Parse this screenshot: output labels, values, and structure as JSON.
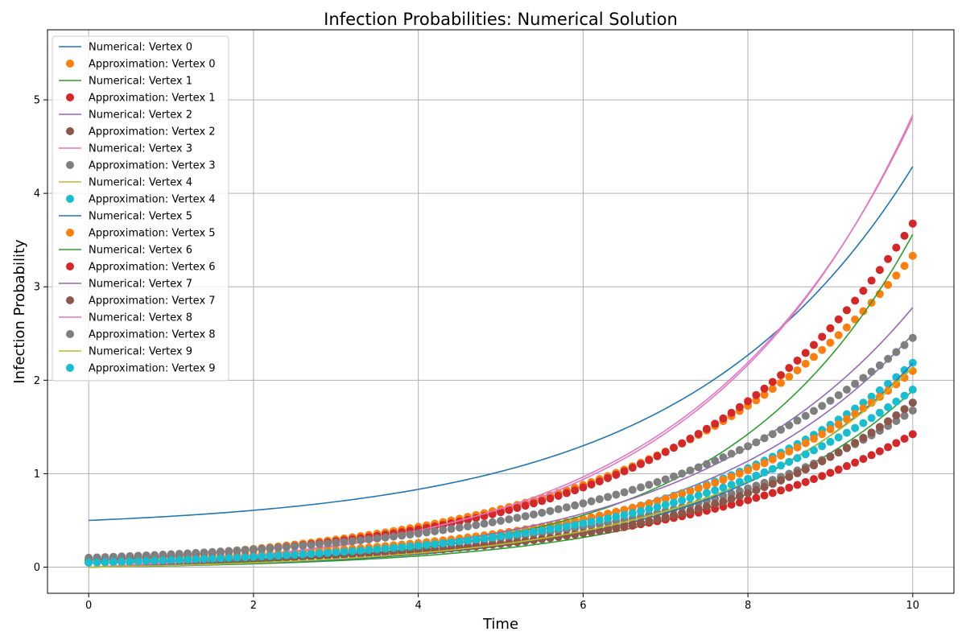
{
  "chart_data": {
    "type": "line",
    "title": "Infection Probabilities: Numerical Solution",
    "xlabel": "Time",
    "ylabel": "Infection Probability",
    "xlim": [
      -0.5,
      10.5
    ],
    "ylim": [
      -0.28,
      5.75
    ],
    "xticks": [
      0,
      2,
      4,
      6,
      8,
      10
    ],
    "yticks": [
      0,
      1,
      2,
      3,
      4,
      5
    ],
    "grid": true,
    "legend_position": "top-left",
    "colors": {
      "blue": "#1f77b4",
      "orange": "#ff7f0e",
      "green": "#2ca02c",
      "red": "#d62728",
      "purple": "#9467bd",
      "brown": "#8c564b",
      "pink": "#e377c2",
      "gray": "#7f7f7f",
      "olive": "#bcbd22",
      "cyan": "#17becf"
    },
    "approximation_t": [
      0.0,
      0.1,
      0.2,
      0.3,
      0.4,
      0.5,
      0.6,
      0.7,
      0.8,
      0.9,
      1.0,
      1.1,
      1.2,
      1.3,
      1.4,
      1.5,
      1.6,
      1.7,
      1.8,
      1.9,
      2.0,
      2.1,
      2.2,
      2.3,
      2.4,
      2.5,
      2.6,
      2.7,
      2.8,
      2.9,
      3.0,
      3.1,
      3.2,
      3.3,
      3.4,
      3.5,
      3.6,
      3.7,
      3.8,
      3.9,
      4.0,
      4.1,
      4.2,
      4.3,
      4.4,
      4.5,
      4.6,
      4.7,
      4.8,
      4.9,
      5.0,
      5.1,
      5.2,
      5.3,
      5.4,
      5.5,
      5.6,
      5.7,
      5.8,
      5.9,
      6.0,
      6.1,
      6.2,
      6.3,
      6.4,
      6.5,
      6.6,
      6.7,
      6.8,
      6.9,
      7.0,
      7.1,
      7.2,
      7.3,
      7.4,
      7.5,
      7.6,
      7.7,
      7.8,
      7.9,
      8.0,
      8.1,
      8.2,
      8.3,
      8.4,
      8.5,
      8.6,
      8.7,
      8.8,
      8.9,
      9.0,
      9.1,
      9.2,
      9.3,
      9.4,
      9.5,
      9.6,
      9.7,
      9.8,
      9.9,
      10.0
    ],
    "series": [
      {
        "name": "Numerical: Vertex 0",
        "kind": "line",
        "color": "#1f77b4",
        "base": 0.5,
        "amp": 0.1,
        "rate": 0.366
      },
      {
        "name": "Approximation: Vertex 0",
        "kind": "points",
        "color": "#ff7f0e",
        "base": 0.07,
        "amp": 0.14,
        "rate": 0.319
      },
      {
        "name": "Numerical: Vertex 1",
        "kind": "line",
        "color": "#2ca02c",
        "base": 0.0,
        "amp": 0.026,
        "rate": 0.43
      },
      {
        "name": "Approximation: Vertex 1",
        "kind": "points",
        "color": "#d62728",
        "base": 0.05,
        "amp": 0.045,
        "rate": 0.345
      },
      {
        "name": "Numerical: Vertex 2",
        "kind": "line",
        "color": "#9467bd",
        "base": 0.0,
        "amp": 0.057,
        "rate": 0.38
      },
      {
        "name": "Approximation: Vertex 2",
        "kind": "points",
        "color": "#8c564b",
        "base": 0.05,
        "amp": 0.03,
        "rate": 0.406
      },
      {
        "name": "Numerical: Vertex 3",
        "kind": "line",
        "color": "#e377c2",
        "base": 0.0,
        "amp": 0.1,
        "rate": 0.39
      },
      {
        "name": "Approximation: Vertex 3",
        "kind": "points",
        "color": "#7f7f7f",
        "base": 0.07,
        "amp": 0.05,
        "rate": 0.35
      },
      {
        "name": "Numerical: Vertex 4",
        "kind": "line",
        "color": "#bcbd22",
        "base": 0.0,
        "amp": 0.036,
        "rate": 0.41
      },
      {
        "name": "Approximation: Vertex 4",
        "kind": "points",
        "color": "#17becf",
        "base": 0.05,
        "amp": 0.06,
        "rate": 0.36
      },
      {
        "name": "Numerical: Vertex 5",
        "kind": "line",
        "color": "#1f77b4",
        "base": 0.0,
        "amp": 0.03,
        "rate": 0.43
      },
      {
        "name": "Approximation: Vertex 5",
        "kind": "points",
        "color": "#ff7f0e",
        "base": 0.07,
        "amp": 0.06,
        "rate": 0.355
      },
      {
        "name": "Numerical: Vertex 6",
        "kind": "line",
        "color": "#2ca02c",
        "base": 0.0,
        "amp": 0.04,
        "rate": 0.45
      },
      {
        "name": "Approximation: Vertex 6",
        "kind": "points",
        "color": "#d62728",
        "base": 0.08,
        "amp": 0.1,
        "rate": 0.361
      },
      {
        "name": "Numerical: Vertex 7",
        "kind": "line",
        "color": "#9467bd",
        "base": 0.0,
        "amp": 0.069,
        "rate": 0.372
      },
      {
        "name": "Approximation: Vertex 7",
        "kind": "points",
        "color": "#8c564b",
        "base": 0.05,
        "amp": 0.03,
        "rate": 0.406
      },
      {
        "name": "Numerical: Vertex 8",
        "kind": "line",
        "color": "#e377c2",
        "base": 0.0,
        "amp": 0.11,
        "rate": 0.38
      },
      {
        "name": "Approximation: Vertex 8",
        "kind": "points",
        "color": "#7f7f7f",
        "base": 0.1,
        "amp": 0.1,
        "rate": 0.32
      },
      {
        "name": "Numerical: Vertex 9",
        "kind": "line",
        "color": "#bcbd22",
        "base": 0.0,
        "amp": 0.036,
        "rate": 0.41
      },
      {
        "name": "Approximation: Vertex 9",
        "kind": "points",
        "color": "#17becf",
        "base": 0.05,
        "amp": 0.06,
        "rate": 0.346
      }
    ]
  }
}
